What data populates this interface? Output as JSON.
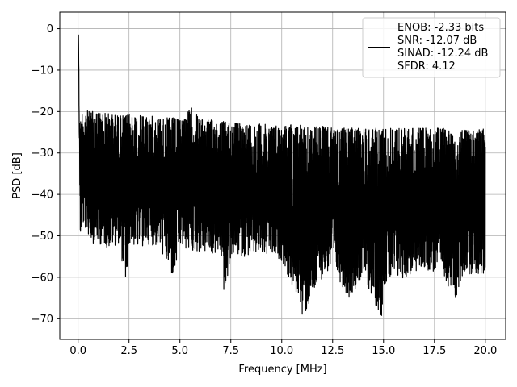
{
  "chart_data": {
    "type": "line",
    "title": "",
    "xlabel": "Frequency [MHz]",
    "ylabel": "PSD [dB]",
    "xlim": [
      -0.9,
      21.0
    ],
    "ylim": [
      -75,
      4
    ],
    "xticks": [
      0.0,
      2.5,
      5.0,
      7.5,
      10.0,
      12.5,
      15.0,
      17.5,
      20.0
    ],
    "xtick_labels": [
      "0.0",
      "2.5",
      "5.0",
      "7.5",
      "10.0",
      "12.5",
      "15.0",
      "17.5",
      "20.0"
    ],
    "yticks": [
      0,
      -10,
      -20,
      -30,
      -40,
      -50,
      -60,
      -70
    ],
    "ytick_labels": [
      "0",
      "−10",
      "−20",
      "−30",
      "−40",
      "−50",
      "−60",
      "−70"
    ],
    "grid": true,
    "legend_position": "top-right",
    "line_color": "#000000",
    "series": [
      {
        "legend_lines": [
          "ENOB: -2.33 bits",
          "SNR: -12.07 dB",
          "SINAD: -12.24 dB",
          "SFDR: 4.12"
        ],
        "x": [
          0.0,
          0.02,
          0.04,
          0.06,
          0.1,
          0.15,
          0.2,
          0.3,
          0.5,
          0.75,
          1.0,
          1.5,
          2.0,
          2.4,
          2.5,
          3.0,
          3.5,
          4.0,
          4.7,
          5.0,
          5.6,
          6.0,
          7.0,
          7.2,
          7.5,
          8.0,
          9.0,
          10.0,
          10.6,
          10.9,
          11.0,
          12.0,
          12.5,
          13.3,
          14.0,
          14.9,
          15.0,
          16.2,
          17.0,
          18.0,
          18.5,
          19.0,
          20.0
        ],
        "upper_envelope": [
          -6,
          0,
          -10,
          -18,
          -23,
          -21,
          -20,
          -19,
          -20,
          -20,
          -20,
          -20.5,
          -21,
          -21,
          -20.5,
          -21,
          -21,
          -21.5,
          -21.5,
          -22,
          -19,
          -22,
          -22,
          -22.5,
          -22.5,
          -23,
          -23,
          -23.5,
          -23,
          -23,
          -24,
          -23.5,
          -24,
          -24,
          -24,
          -24,
          -24,
          -24,
          -24,
          -24,
          -24.5,
          -24.5,
          -24
        ],
        "lower_envelope": [
          -7,
          -3,
          -28,
          -45,
          -51,
          -50,
          -48,
          -48,
          -50,
          -52,
          -52,
          -53,
          -52,
          -63,
          -52,
          -53,
          -52,
          -53,
          -61,
          -53,
          -54,
          -54,
          -55,
          -66,
          -55,
          -55,
          -55,
          -56,
          -64,
          -65,
          -71,
          -60,
          -58,
          -65,
          -60,
          -70,
          -62,
          -60,
          -58,
          -60,
          -66,
          -59,
          -60
        ]
      }
    ]
  }
}
